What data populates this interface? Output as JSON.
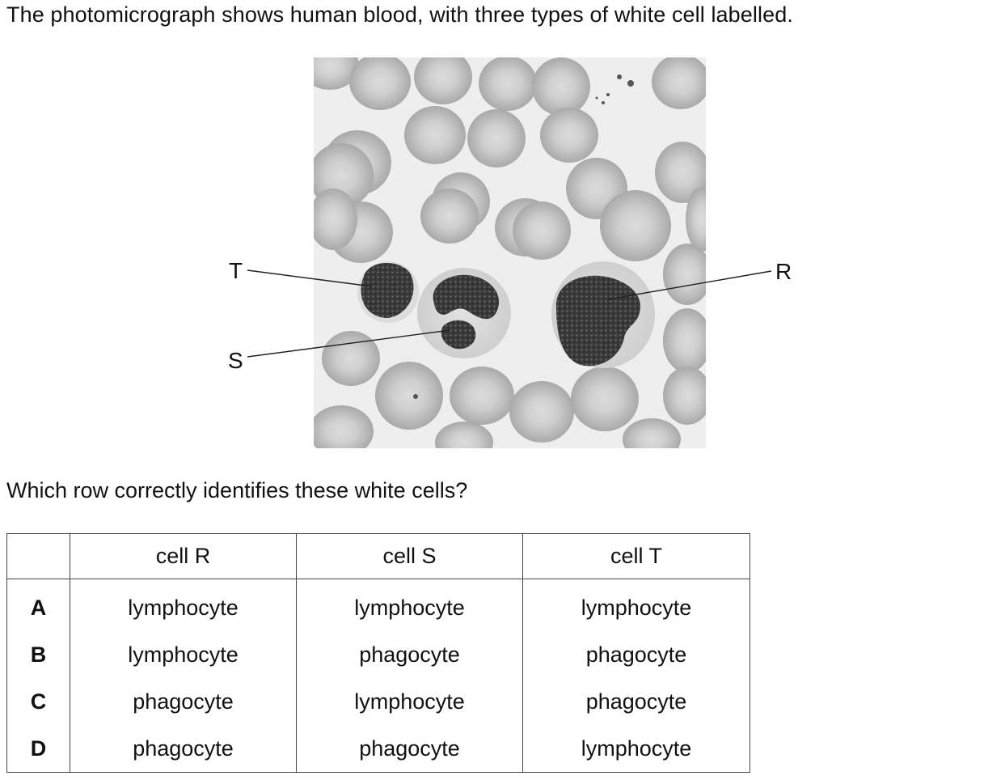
{
  "intro_text": "The photomicrograph shows human blood, with three types of white cell labelled.",
  "figure": {
    "labels": {
      "T": "T",
      "S": "S",
      "R": "R"
    }
  },
  "question_text": "Which row correctly identifies these white cells?",
  "table": {
    "headers": [
      "",
      "cell R",
      "cell S",
      "cell T"
    ],
    "rows": [
      {
        "option": "A",
        "r": "lymphocyte",
        "s": "lymphocyte",
        "t": "lymphocyte"
      },
      {
        "option": "B",
        "r": "lymphocyte",
        "s": "phagocyte",
        "t": "phagocyte"
      },
      {
        "option": "C",
        "r": "phagocyte",
        "s": "lymphocyte",
        "t": "phagocyte"
      },
      {
        "option": "D",
        "r": "phagocyte",
        "s": "phagocyte",
        "t": "lymphocyte"
      }
    ]
  }
}
